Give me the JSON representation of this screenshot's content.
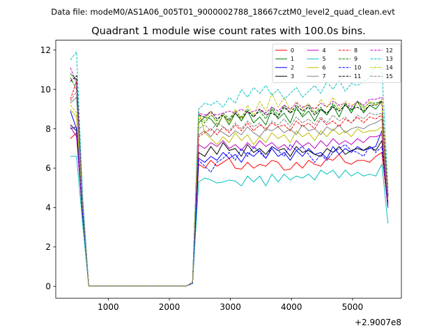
{
  "chart_data": {
    "type": "line",
    "suptitle": "Data file: modeM0/AS1A06_005T01_9000002788_18667cztM0_level2_quad_clean.evt",
    "title": "Quadrant 1 module wise count rates with 100.0s bins.",
    "xlabel": "",
    "ylabel": "",
    "x_offset_label": "+2.9007e8",
    "xlim": [
      140,
      5800
    ],
    "ylim": [
      -0.6,
      12.5
    ],
    "xticks": [
      1000,
      2000,
      3000,
      4000,
      5000
    ],
    "xtick_labels": [
      "1000",
      "2000",
      "3000",
      "4000",
      "5000"
    ],
    "yticks": [
      0,
      2,
      4,
      6,
      8,
      10,
      12
    ],
    "ytick_labels": [
      "0",
      "2",
      "4",
      "6",
      "8",
      "10",
      "12"
    ],
    "legend_position": "top-right",
    "legend_columns": 4,
    "x": [
      380,
      480,
      580,
      680,
      780,
      880,
      980,
      1080,
      1180,
      1280,
      1380,
      1480,
      1580,
      1680,
      1780,
      1880,
      1980,
      2080,
      2180,
      2280,
      2380,
      2480,
      2580,
      2680,
      2780,
      2880,
      2980,
      3080,
      3180,
      3280,
      3380,
      3480,
      3580,
      3680,
      3780,
      3880,
      3980,
      4080,
      4180,
      4280,
      4380,
      4480,
      4580,
      4680,
      4780,
      4880,
      4980,
      5080,
      5180,
      5280,
      5380,
      5480,
      5580
    ],
    "series": [
      {
        "name": "0",
        "color": "#ff0000",
        "dash": "solid",
        "values": [
          7.5,
          7.8,
          3.5,
          0.02,
          0.02,
          0.02,
          0.02,
          0.02,
          0.02,
          0.02,
          0.02,
          0.02,
          0.02,
          0.02,
          0.02,
          0.02,
          0.02,
          0.02,
          0.02,
          0.02,
          0.15,
          6.2,
          6.0,
          6.4,
          6.1,
          6.3,
          6.5,
          6.0,
          5.95,
          6.3,
          6.0,
          6.2,
          6.1,
          6.4,
          6.3,
          5.9,
          5.95,
          6.3,
          6.0,
          6.4,
          6.2,
          6.1,
          6.5,
          6.4,
          6.7,
          6.3,
          6.2,
          6.4,
          6.4,
          6.3,
          6.6,
          6.8,
          4.0
        ]
      },
      {
        "name": "1",
        "color": "#008000",
        "dash": "solid",
        "values": [
          10.8,
          10.5,
          4.0,
          0.02,
          0.02,
          0.02,
          0.02,
          0.02,
          0.02,
          0.02,
          0.02,
          0.02,
          0.02,
          0.02,
          0.02,
          0.02,
          0.02,
          0.02,
          0.02,
          0.02,
          0.2,
          8.3,
          8.6,
          8.5,
          8.1,
          8.7,
          8.2,
          8.8,
          8.4,
          8.9,
          8.3,
          8.6,
          8.2,
          9.0,
          8.5,
          8.8,
          8.3,
          9.1,
          8.6,
          8.9,
          8.4,
          9.0,
          8.7,
          9.2,
          8.6,
          9.3,
          8.8,
          9.4,
          8.8,
          9.2,
          9.0,
          9.4,
          4.5
        ]
      },
      {
        "name": "2",
        "color": "#0000ff",
        "dash": "solid",
        "values": [
          8.9,
          8.0,
          3.8,
          0.02,
          0.02,
          0.02,
          0.02,
          0.02,
          0.02,
          0.02,
          0.02,
          0.02,
          0.02,
          0.02,
          0.02,
          0.02,
          0.02,
          0.02,
          0.02,
          0.02,
          0.18,
          6.5,
          6.3,
          6.6,
          6.4,
          6.8,
          6.5,
          6.7,
          6.3,
          6.8,
          6.6,
          6.9,
          6.5,
          7.0,
          6.6,
          6.8,
          6.4,
          6.9,
          6.6,
          7.0,
          6.7,
          6.8,
          6.5,
          7.1,
          6.7,
          7.0,
          6.8,
          7.1,
          6.9,
          7.0,
          7.1,
          7.9,
          4.3
        ]
      },
      {
        "name": "3",
        "color": "#000000",
        "dash": "solid",
        "values": [
          8.2,
          7.9,
          3.6,
          0.02,
          0.02,
          0.02,
          0.02,
          0.02,
          0.02,
          0.02,
          0.02,
          0.02,
          0.02,
          0.02,
          0.02,
          0.02,
          0.02,
          0.02,
          0.02,
          0.02,
          0.18,
          6.8,
          6.6,
          7.1,
          6.7,
          7.3,
          6.9,
          7.0,
          6.6,
          7.2,
          6.8,
          7.0,
          6.7,
          7.1,
          6.9,
          7.0,
          6.6,
          7.1,
          6.8,
          6.9,
          6.7,
          6.6,
          7.0,
          6.8,
          7.1,
          6.7,
          6.9,
          7.0,
          6.9,
          7.1,
          6.9,
          7.4,
          4.2
        ]
      },
      {
        "name": "4",
        "color": "#bf00bf",
        "dash": "solid",
        "values": [
          8.1,
          7.6,
          3.7,
          0.02,
          0.02,
          0.02,
          0.02,
          0.02,
          0.02,
          0.02,
          0.02,
          0.02,
          0.02,
          0.02,
          0.02,
          0.02,
          0.02,
          0.02,
          0.02,
          0.02,
          0.18,
          7.2,
          7.0,
          7.3,
          7.1,
          7.4,
          7.0,
          7.2,
          6.9,
          7.3,
          7.0,
          7.4,
          7.1,
          7.3,
          7.0,
          7.2,
          6.9,
          7.4,
          7.1,
          7.3,
          7.0,
          7.4,
          7.1,
          7.5,
          7.2,
          7.4,
          7.2,
          7.5,
          7.3,
          7.6,
          7.6,
          7.7,
          4.2
        ]
      },
      {
        "name": "5",
        "color": "#00bfbf",
        "dash": "solid",
        "values": [
          6.6,
          6.6,
          3.2,
          0.02,
          0.02,
          0.02,
          0.02,
          0.02,
          0.02,
          0.02,
          0.02,
          0.02,
          0.02,
          0.02,
          0.02,
          0.02,
          0.02,
          0.02,
          0.02,
          0.02,
          0.15,
          5.3,
          5.5,
          5.4,
          5.25,
          5.3,
          5.4,
          5.35,
          5.1,
          5.6,
          5.3,
          5.6,
          5.1,
          5.7,
          5.3,
          5.7,
          5.4,
          5.6,
          5.5,
          5.7,
          5.4,
          5.9,
          5.7,
          5.9,
          5.5,
          5.9,
          5.6,
          5.8,
          5.6,
          5.7,
          5.6,
          6.2,
          3.2
        ]
      },
      {
        "name": "6",
        "color": "#bfbf00",
        "dash": "solid",
        "values": [
          9.0,
          8.6,
          3.9,
          0.02,
          0.02,
          0.02,
          0.02,
          0.02,
          0.02,
          0.02,
          0.02,
          0.02,
          0.02,
          0.02,
          0.02,
          0.02,
          0.02,
          0.02,
          0.02,
          0.02,
          0.2,
          8.9,
          7.8,
          7.5,
          7.2,
          7.6,
          7.3,
          7.8,
          7.4,
          7.7,
          7.2,
          7.6,
          7.3,
          7.8,
          7.5,
          7.7,
          7.3,
          7.9,
          7.6,
          7.8,
          7.4,
          7.9,
          7.6,
          8.0,
          7.7,
          7.9,
          7.6,
          8.0,
          7.8,
          7.9,
          7.9,
          8.1,
          4.4
        ]
      },
      {
        "name": "7",
        "color": "#808080",
        "dash": "solid",
        "values": [
          9.3,
          9.6,
          4.0,
          0.02,
          0.02,
          0.02,
          0.02,
          0.02,
          0.02,
          0.02,
          0.02,
          0.02,
          0.02,
          0.02,
          0.02,
          0.02,
          0.02,
          0.02,
          0.02,
          0.02,
          0.2,
          7.7,
          7.9,
          7.6,
          8.0,
          7.8,
          7.6,
          7.9,
          7.7,
          8.1,
          7.8,
          7.6,
          8.0,
          7.9,
          8.1,
          7.8,
          8.0,
          7.7,
          8.2,
          7.9,
          8.0,
          7.7,
          8.1,
          7.9,
          8.2,
          7.8,
          8.0,
          8.1,
          8.0,
          8.2,
          8.3,
          8.5,
          4.5
        ]
      },
      {
        "name": "8",
        "color": "#ff0000",
        "dash": "dashed",
        "values": [
          9.5,
          10.4,
          4.2,
          0.02,
          0.02,
          0.02,
          0.02,
          0.02,
          0.02,
          0.02,
          0.02,
          0.02,
          0.02,
          0.02,
          0.02,
          0.02,
          0.02,
          0.02,
          0.02,
          0.02,
          0.2,
          7.6,
          7.8,
          8.0,
          7.7,
          8.1,
          7.8,
          8.2,
          7.9,
          8.3,
          7.9,
          8.2,
          8.0,
          8.3,
          8.1,
          8.2,
          7.9,
          8.4,
          8.1,
          8.3,
          8.0,
          8.5,
          8.2,
          8.4,
          8.1,
          8.5,
          8.3,
          8.6,
          8.3,
          8.6,
          8.5,
          8.7,
          4.6
        ]
      },
      {
        "name": "9",
        "color": "#008000",
        "dash": "dashed",
        "values": [
          10.6,
          10.0,
          4.3,
          0.02,
          0.02,
          0.02,
          0.02,
          0.02,
          0.02,
          0.02,
          0.02,
          0.02,
          0.02,
          0.02,
          0.02,
          0.02,
          0.02,
          0.02,
          0.02,
          0.02,
          0.2,
          8.5,
          8.3,
          8.7,
          8.4,
          8.8,
          8.5,
          8.9,
          8.6,
          9.0,
          8.6,
          8.9,
          8.5,
          9.1,
          8.7,
          9.2,
          8.8,
          9.0,
          8.7,
          9.2,
          8.8,
          9.1,
          8.7,
          9.3,
          8.9,
          9.2,
          8.9,
          9.4,
          9.1,
          9.3,
          9.3,
          9.4,
          4.7
        ]
      },
      {
        "name": "10",
        "color": "#0000ff",
        "dash": "dashed",
        "values": [
          8.0,
          8.1,
          3.7,
          0.02,
          0.02,
          0.02,
          0.02,
          0.02,
          0.02,
          0.02,
          0.02,
          0.02,
          0.02,
          0.02,
          0.02,
          0.02,
          0.02,
          0.02,
          0.02,
          0.02,
          0.15,
          6.4,
          6.1,
          5.8,
          6.3,
          6.5,
          6.8,
          6.4,
          7.0,
          6.6,
          7.1,
          6.8,
          6.5,
          7.1,
          6.9,
          6.6,
          7.2,
          6.9,
          7.1,
          6.7,
          6.3,
          6.7,
          6.4,
          6.8,
          7.0,
          7.2,
          6.9,
          6.8,
          6.6,
          7.1,
          6.8,
          7.1,
          4.0
        ]
      },
      {
        "name": "11",
        "color": "#000000",
        "dash": "dashed",
        "values": [
          10.4,
          10.7,
          4.3,
          0.02,
          0.02,
          0.02,
          0.02,
          0.02,
          0.02,
          0.02,
          0.02,
          0.02,
          0.02,
          0.02,
          0.02,
          0.02,
          0.02,
          0.02,
          0.02,
          0.02,
          0.2,
          8.7,
          8.6,
          8.9,
          8.5,
          8.7,
          8.4,
          8.8,
          8.5,
          8.9,
          8.6,
          9.0,
          8.7,
          8.8,
          8.6,
          9.1,
          8.8,
          9.2,
          8.9,
          9.1,
          8.7,
          9.0,
          8.8,
          9.1,
          8.9,
          9.2,
          9.0,
          9.1,
          8.9,
          9.2,
          9.2,
          9.4,
          4.6
        ]
      },
      {
        "name": "12",
        "color": "#bf00bf",
        "dash": "dashed",
        "values": [
          11.1,
          10.3,
          4.4,
          0.02,
          0.02,
          0.02,
          0.02,
          0.02,
          0.02,
          0.02,
          0.02,
          0.02,
          0.02,
          0.02,
          0.02,
          0.02,
          0.02,
          0.02,
          0.02,
          0.02,
          0.2,
          8.8,
          8.7,
          8.8,
          8.7,
          8.8,
          8.9,
          8.8,
          9.0,
          8.8,
          8.9,
          9.0,
          8.8,
          9.1,
          8.9,
          9.2,
          9.0,
          9.3,
          9.1,
          9.2,
          9.0,
          9.3,
          9.1,
          9.4,
          9.2,
          9.3,
          9.1,
          9.4,
          9.2,
          9.5,
          9.5,
          9.6,
          4.7
        ]
      },
      {
        "name": "13",
        "color": "#00bfbf",
        "dash": "dashed",
        "values": [
          11.5,
          11.9,
          4.6,
          0.02,
          0.02,
          0.02,
          0.02,
          0.02,
          0.02,
          0.02,
          0.02,
          0.02,
          0.02,
          0.02,
          0.02,
          0.02,
          0.02,
          0.02,
          0.02,
          0.02,
          0.2,
          9.0,
          9.3,
          9.2,
          9.4,
          9.1,
          9.6,
          9.3,
          10.0,
          9.6,
          10.1,
          9.8,
          10.2,
          9.7,
          10.0,
          9.5,
          9.8,
          10.1,
          9.6,
          9.9,
          10.2,
          9.8,
          10.4,
          10.0,
          10.5,
          9.9,
          10.3,
          10.2,
          10.4,
          10.6,
          11.3,
          11.1,
          5.0
        ]
      },
      {
        "name": "14",
        "color": "#bfbf00",
        "dash": "dashed",
        "values": [
          9.2,
          8.8,
          4.1,
          0.02,
          0.02,
          0.02,
          0.02,
          0.02,
          0.02,
          0.02,
          0.02,
          0.02,
          0.02,
          0.02,
          0.02,
          0.02,
          0.02,
          0.02,
          0.02,
          0.02,
          0.2,
          8.6,
          8.4,
          8.9,
          8.2,
          8.7,
          8.3,
          9.0,
          8.5,
          9.2,
          8.7,
          9.4,
          8.9,
          9.8,
          9.1,
          9.6,
          8.9,
          9.4,
          9.0,
          9.3,
          8.8,
          9.5,
          9.1,
          9.6,
          9.0,
          9.4,
          9.2,
          9.3,
          9.0,
          9.4,
          9.2,
          9.5,
          4.8
        ]
      },
      {
        "name": "15",
        "color": "#808080",
        "dash": "dashed",
        "values": [
          9.4,
          9.9,
          4.2,
          0.02,
          0.02,
          0.02,
          0.02,
          0.02,
          0.02,
          0.02,
          0.02,
          0.02,
          0.02,
          0.02,
          0.02,
          0.02,
          0.02,
          0.02,
          0.02,
          0.02,
          0.2,
          8.0,
          8.2,
          7.9,
          8.3,
          8.1,
          7.9,
          8.3,
          8.0,
          8.4,
          8.1,
          8.3,
          7.9,
          8.4,
          8.2,
          8.5,
          8.1,
          8.6,
          8.3,
          8.5,
          8.2,
          8.6,
          8.3,
          8.7,
          8.4,
          8.6,
          8.3,
          8.7,
          8.5,
          8.8,
          8.7,
          8.8,
          4.6
        ]
      }
    ]
  }
}
